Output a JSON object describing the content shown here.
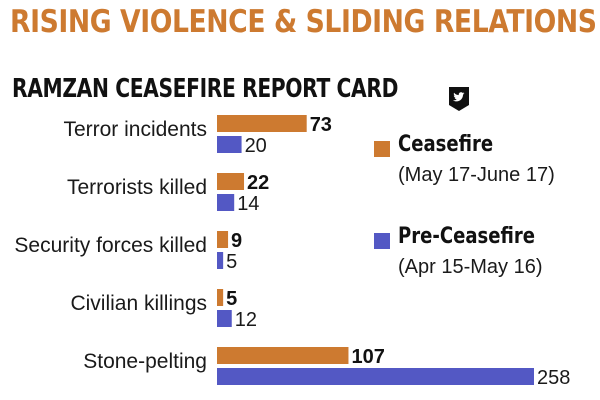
{
  "headline": "RISING VIOLENCE & SLIDING RELATIONS",
  "subheadline": "RAMZAN CEASEFIRE REPORT CARD",
  "share_icon": "twitter-bird-icon",
  "colors": {
    "ceasefire": "#cd7a30",
    "pre_ceasefire": "#5358c4",
    "headline": "#cd7a30"
  },
  "legend": {
    "ceasefire": {
      "name": "Ceasefire",
      "period": "(May 17-June 17)"
    },
    "pre_ceasefire": {
      "name": "Pre-Ceasefire",
      "period": "(Apr 15-May 16)"
    }
  },
  "chart_data": {
    "type": "bar",
    "orientation": "horizontal",
    "title": "RAMZAN CEASEFIRE REPORT CARD",
    "categories": [
      "Terror incidents",
      "Terrorists killed",
      "Security forces killed",
      "Civilian killings",
      "Stone-pelting"
    ],
    "series": [
      {
        "name": "Ceasefire",
        "values": [
          73,
          22,
          9,
          5,
          107
        ]
      },
      {
        "name": "Pre-Ceasefire",
        "values": [
          20,
          14,
          5,
          12,
          258
        ]
      }
    ],
    "legend_position": "right",
    "grid": false
  }
}
